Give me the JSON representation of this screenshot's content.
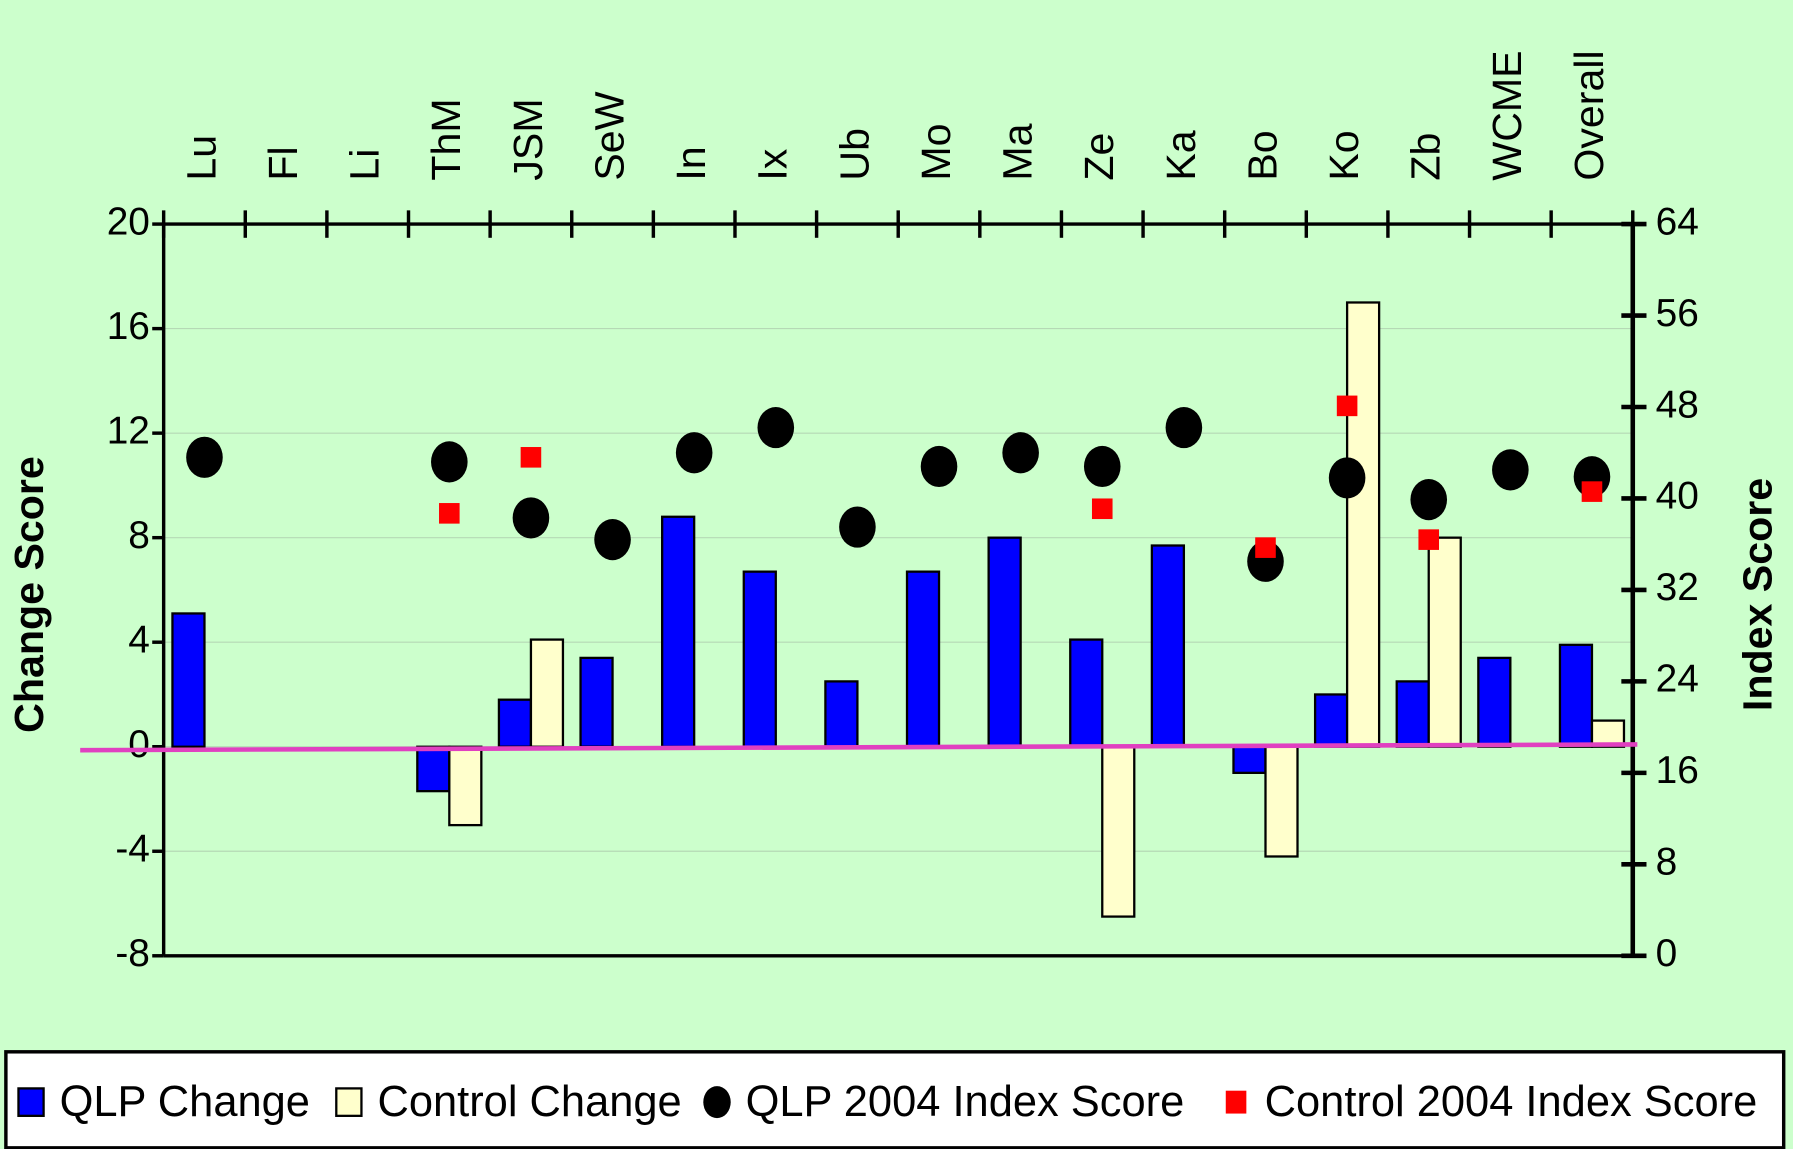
{
  "chart_data": {
    "type": "bar",
    "categories": [
      "Lu",
      "Fl",
      "Li",
      "ThM",
      "JSM",
      "SeW",
      "In",
      "Ix",
      "Ub",
      "Mo",
      "Ma",
      "Ze",
      "Ka",
      "Bo",
      "Ko",
      "Zb",
      "WCME",
      "Overall"
    ],
    "y_label": "Change Score",
    "y2_label": "Index Score",
    "ylim": [
      -8,
      20
    ],
    "yticks": [
      -8,
      -4,
      0,
      4,
      8,
      12,
      16,
      20
    ],
    "y2lim": [
      0,
      64
    ],
    "y2ticks": [
      0,
      8,
      16,
      24,
      32,
      40,
      48,
      56,
      64
    ],
    "series": [
      {
        "name": "QLP Change",
        "type": "bar",
        "color": "#0000ff",
        "values": [
          5.1,
          null,
          null,
          -1.7,
          1.8,
          3.4,
          8.8,
          6.7,
          2.5,
          6.7,
          8.0,
          4.1,
          7.7,
          -1.0,
          2.0,
          2.5,
          3.4,
          3.9
        ]
      },
      {
        "name": "Control Change",
        "type": "bar",
        "color": "#ffffcc",
        "values": [
          null,
          null,
          null,
          -3.0,
          4.1,
          null,
          null,
          null,
          null,
          null,
          null,
          -6.5,
          null,
          -4.2,
          17.0,
          8.0,
          null,
          1.0
        ]
      },
      {
        "name": "QLP 2004 Index Score",
        "type": "scatter",
        "marker": "circle",
        "color": "#000000",
        "axis": "y2",
        "values": [
          43.6,
          null,
          null,
          43.2,
          38.3,
          36.4,
          44.0,
          46.2,
          37.5,
          42.8,
          44.0,
          42.8,
          46.2,
          34.5,
          41.8,
          39.9,
          42.5,
          41.9
        ]
      },
      {
        "name": "Control 2004 Index Score",
        "type": "scatter",
        "marker": "square",
        "color": "#ff0000",
        "axis": "y2",
        "values": [
          null,
          null,
          null,
          38.7,
          43.6,
          null,
          null,
          null,
          null,
          null,
          null,
          39.1,
          null,
          35.7,
          48.1,
          36.4,
          null,
          40.6
        ]
      }
    ]
  }
}
